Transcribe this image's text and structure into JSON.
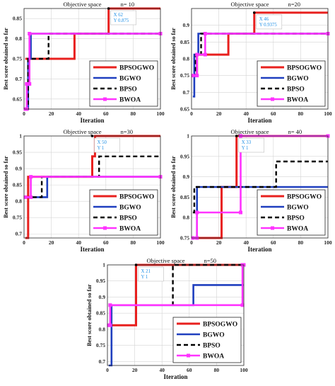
{
  "colors": {
    "BPSOGWO": "#e8201e",
    "BGWO": "#1f3fbf",
    "BPSO": "#000000",
    "BWOA": "#ff33ff",
    "datatip_text": "#1e8fe6"
  },
  "chart_data": [
    {
      "type": "line",
      "title": "Objective space",
      "subtitle": "n= 10",
      "xlabel": "Iteration",
      "ylabel": "Best score obtained so far",
      "xlim": [
        0,
        100
      ],
      "ylim": [
        0.625,
        0.875
      ],
      "xticks": [
        0,
        20,
        40,
        60,
        80,
        100
      ],
      "yticks": [
        0.65,
        0.7,
        0.75,
        0.8,
        0.85
      ],
      "grid": true,
      "legend": "bottom-right",
      "datatip": {
        "x_label": "X 62",
        "y_label": "Y 0.875",
        "x": 62,
        "y": 0.875
      },
      "series": [
        {
          "name": "BPSOGWO",
          "x": [
            1,
            37,
            37,
            62,
            62,
            100
          ],
          "y": [
            0.75,
            0.75,
            0.8125,
            0.8125,
            0.875,
            0.875
          ]
        },
        {
          "name": "BGWO",
          "x": [
            1,
            3,
            3,
            5,
            5,
            100
          ],
          "y": [
            0.625,
            0.625,
            0.75,
            0.75,
            0.8125,
            0.8125
          ]
        },
        {
          "name": "BPSO",
          "x": [
            1,
            3,
            3,
            18,
            18,
            100
          ],
          "y": [
            0.625,
            0.625,
            0.75,
            0.75,
            0.8125,
            0.8125
          ]
        },
        {
          "name": "BWOA",
          "x": [
            1,
            2,
            2,
            4,
            4,
            100
          ],
          "y": [
            0.625,
            0.625,
            0.6875,
            0.6875,
            0.8125,
            0.8125
          ]
        }
      ]
    },
    {
      "type": "line",
      "title": "Objective space",
      "subtitle": "n=20",
      "xlabel": "Iteration",
      "ylabel": "Best score obtained so far",
      "xlim": [
        0,
        100
      ],
      "ylim": [
        0.65,
        0.95
      ],
      "xticks": [
        0,
        20,
        40,
        60,
        80,
        100
      ],
      "yticks": [
        0.65,
        0.7,
        0.75,
        0.8,
        0.85,
        0.9
      ],
      "grid": true,
      "legend": "bottom-right",
      "datatip": {
        "x_label": "X 46",
        "y_label": "Y 0.9375",
        "x": 46,
        "y": 0.9375
      },
      "series": [
        {
          "name": "BPSOGWO",
          "x": [
            1,
            4,
            4,
            17,
            17,
            27,
            27,
            46,
            46,
            100
          ],
          "y": [
            0.75,
            0.75,
            0.8125,
            0.8125,
            0.8125,
            0.8125,
            0.875,
            0.875,
            0.9375,
            0.9375
          ]
        },
        {
          "name": "BGWO",
          "x": [
            1,
            2,
            2,
            5,
            5,
            100
          ],
          "y": [
            0.6875,
            0.6875,
            0.8125,
            0.8125,
            0.875,
            0.875
          ]
        },
        {
          "name": "BPSO",
          "x": [
            1,
            3,
            3,
            7,
            7,
            100
          ],
          "y": [
            0.75,
            0.75,
            0.8125,
            0.8125,
            0.875,
            0.875
          ]
        },
        {
          "name": "BWOA",
          "x": [
            1,
            4,
            4,
            10,
            10,
            100
          ],
          "y": [
            0.75,
            0.75,
            0.8125,
            0.8125,
            0.875,
            0.875
          ]
        }
      ]
    },
    {
      "type": "line",
      "title": "Objective space",
      "subtitle": "n=30",
      "xlabel": "Iteration",
      "ylabel": "Best score obtained so far",
      "xlim": [
        0,
        100
      ],
      "ylim": [
        0.6875,
        1.0
      ],
      "xticks": [
        0,
        20,
        40,
        60,
        80,
        100
      ],
      "yticks": [
        0.7,
        0.75,
        0.8,
        0.85,
        0.9,
        0.95,
        1
      ],
      "grid": true,
      "legend": "bottom-right",
      "datatip": {
        "x_label": "X 50",
        "y_label": "Y 1",
        "x": 50,
        "y": 1.0
      },
      "series": [
        {
          "name": "BPSOGWO",
          "x": [
            1,
            3,
            3,
            50,
            50,
            52,
            52,
            100
          ],
          "y": [
            0.6875,
            0.6875,
            0.875,
            0.875,
            0.9375,
            0.9375,
            1.0,
            1.0
          ]
        },
        {
          "name": "BGWO",
          "x": [
            1,
            17,
            17,
            100
          ],
          "y": [
            0.8125,
            0.8125,
            0.875,
            0.875
          ]
        },
        {
          "name": "BPSO",
          "x": [
            1,
            13,
            13,
            55,
            55,
            100
          ],
          "y": [
            0.8125,
            0.8125,
            0.875,
            0.875,
            0.9375,
            0.9375
          ]
        },
        {
          "name": "BWOA",
          "x": [
            1,
            5,
            5,
            100
          ],
          "y": [
            0.8125,
            0.8125,
            0.875,
            0.875
          ]
        }
      ]
    },
    {
      "type": "line",
      "title": "Objective space",
      "subtitle": "n= 40",
      "xlabel": "Iteration",
      "ylabel": "Best score obtained so far",
      "xlim": [
        0,
        100
      ],
      "ylim": [
        0.75,
        1.0
      ],
      "xticks": [
        0,
        20,
        40,
        60,
        80,
        100
      ],
      "yticks": [
        0.75,
        0.8,
        0.85,
        0.9,
        0.95,
        1
      ],
      "grid": true,
      "legend": "bottom-right",
      "datatip": {
        "x_label": "X 33",
        "y_label": "Y 1",
        "x": 33,
        "y": 1.0
      },
      "series": [
        {
          "name": "BPSOGWO",
          "x": [
            1,
            22,
            22,
            33,
            33,
            100
          ],
          "y": [
            0.75,
            0.75,
            0.875,
            0.875,
            1.0,
            1.0
          ]
        },
        {
          "name": "BGWO",
          "x": [
            1,
            4,
            4,
            100
          ],
          "y": [
            0.75,
            0.75,
            0.875,
            0.875
          ]
        },
        {
          "name": "BPSO",
          "x": [
            1,
            2,
            2,
            62,
            62,
            100
          ],
          "y": [
            0.8125,
            0.8125,
            0.875,
            0.875,
            0.9375,
            0.9375
          ]
        },
        {
          "name": "BWOA",
          "x": [
            1,
            4,
            4,
            36,
            36,
            100
          ],
          "y": [
            0.75,
            0.75,
            0.8125,
            0.8125,
            1.0,
            1.0
          ]
        }
      ]
    },
    {
      "type": "line",
      "title": "Objective space",
      "subtitle": "n=50",
      "xlabel": "Iteration",
      "ylabel": "Best score obtained so far",
      "xlim": [
        0,
        100
      ],
      "ylim": [
        0.6875,
        1.0
      ],
      "xticks": [
        0,
        20,
        40,
        60,
        80,
        100
      ],
      "yticks": [
        0.7,
        0.75,
        0.8,
        0.85,
        0.9,
        0.95,
        1
      ],
      "grid": true,
      "legend": "bottom-right",
      "datatip": {
        "x_label": "X 21",
        "y_label": "Y 1",
        "x": 21,
        "y": 1.0
      },
      "series": [
        {
          "name": "BPSOGWO",
          "x": [
            1,
            21,
            21,
            100
          ],
          "y": [
            0.8125,
            0.8125,
            1.0,
            1.0
          ]
        },
        {
          "name": "BGWO",
          "x": [
            1,
            3,
            3,
            63,
            63,
            100
          ],
          "y": [
            0.6875,
            0.6875,
            0.875,
            0.875,
            0.9375,
            0.9375
          ]
        },
        {
          "name": "BPSO",
          "x": [
            1,
            48,
            48,
            100
          ],
          "y": [
            0.875,
            0.875,
            1.0,
            1.0
          ]
        },
        {
          "name": "BWOA",
          "x": [
            1,
            2,
            2,
            99,
            99,
            100
          ],
          "y": [
            0.8125,
            0.8125,
            0.875,
            0.875,
            1.0,
            1.0
          ]
        }
      ]
    }
  ]
}
